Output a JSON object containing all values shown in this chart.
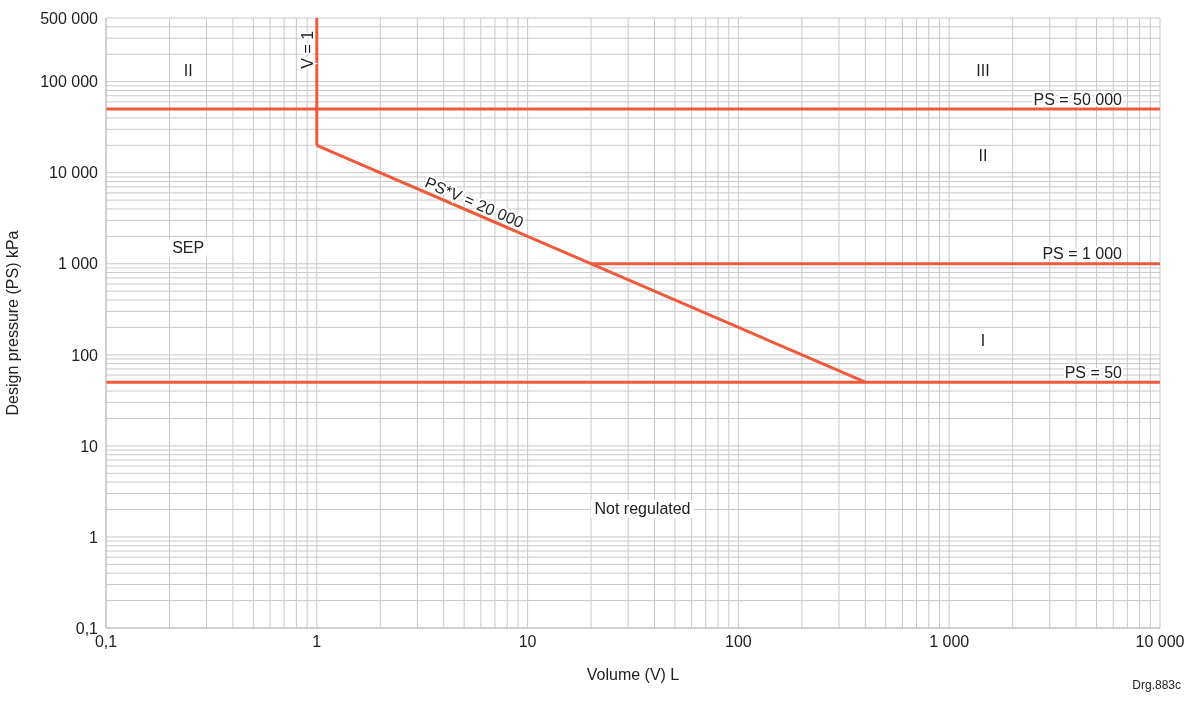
{
  "chart_data": {
    "type": "line",
    "xlabel": "Volume (V) L",
    "ylabel": "Design pressure (PS) kPa",
    "log": "xy",
    "grid": true,
    "xlim": [
      0.1,
      10000
    ],
    "ylim": [
      0.1,
      500000
    ],
    "xticks": [
      {
        "value": 0.1,
        "label": "0,1"
      },
      {
        "value": 0.2,
        "label": null
      },
      {
        "value": 0.3,
        "label": null
      },
      {
        "value": 0.4,
        "label": null
      },
      {
        "value": 0.5,
        "label": null
      },
      {
        "value": 0.6,
        "label": null
      },
      {
        "value": 0.7,
        "label": null
      },
      {
        "value": 0.8,
        "label": null
      },
      {
        "value": 0.9,
        "label": null
      },
      1,
      {
        "value": 2,
        "label": null
      },
      {
        "value": 3,
        "label": null
      },
      {
        "value": 4,
        "label": null
      },
      {
        "value": 5,
        "label": null
      },
      {
        "value": 6,
        "label": null
      },
      {
        "value": 7,
        "label": null
      },
      {
        "value": 8,
        "label": null
      },
      {
        "value": 9,
        "label": null
      },
      10,
      {
        "value": 20,
        "label": null
      },
      {
        "value": 30,
        "label": null
      },
      {
        "value": 40,
        "label": null
      },
      {
        "value": 50,
        "label": null
      },
      {
        "value": 60,
        "label": null
      },
      {
        "value": 70,
        "label": null
      },
      {
        "value": 80,
        "label": null
      },
      {
        "value": 90,
        "label": null
      },
      100,
      {
        "value": 200,
        "label": null
      },
      {
        "value": 300,
        "label": null
      },
      {
        "value": 400,
        "label": null
      },
      {
        "value": 500,
        "label": null
      },
      {
        "value": 600,
        "label": null
      },
      {
        "value": 700,
        "label": null
      },
      {
        "value": 800,
        "label": null
      },
      {
        "value": 900,
        "label": null
      },
      {
        "value": 1000,
        "label": "1 000"
      },
      {
        "value": 2000,
        "label": null
      },
      {
        "value": 3000,
        "label": null
      },
      {
        "value": 4000,
        "label": null
      },
      {
        "value": 5000,
        "label": null
      },
      {
        "value": 6000,
        "label": null
      },
      {
        "value": 7000,
        "label": null
      },
      {
        "value": 8000,
        "label": null
      },
      {
        "value": 9000,
        "label": null
      },
      {
        "value": 10000,
        "label": "10 000"
      }
    ],
    "yticks": [
      {
        "value": 0.1,
        "label": "0,1"
      },
      {
        "value": 0.2,
        "label": null
      },
      {
        "value": 0.3,
        "label": null
      },
      {
        "value": 0.4,
        "label": null
      },
      {
        "value": 0.5,
        "label": null
      },
      {
        "value": 0.6,
        "label": null
      },
      {
        "value": 0.7,
        "label": null
      },
      {
        "value": 0.8,
        "label": null
      },
      {
        "value": 0.9,
        "label": null
      },
      1,
      {
        "value": 2,
        "label": null
      },
      {
        "value": 3,
        "label": null
      },
      {
        "value": 4,
        "label": null
      },
      {
        "value": 5,
        "label": null
      },
      {
        "value": 6,
        "label": null
      },
      {
        "value": 7,
        "label": null
      },
      {
        "value": 8,
        "label": null
      },
      {
        "value": 9,
        "label": null
      },
      10,
      {
        "value": 20,
        "label": null
      },
      {
        "value": 30,
        "label": null
      },
      {
        "value": 40,
        "label": null
      },
      {
        "value": 50,
        "label": null
      },
      {
        "value": 60,
        "label": null
      },
      {
        "value": 70,
        "label": null
      },
      {
        "value": 80,
        "label": null
      },
      {
        "value": 90,
        "label": null
      },
      100,
      {
        "value": 200,
        "label": null
      },
      {
        "value": 300,
        "label": null
      },
      {
        "value": 400,
        "label": null
      },
      {
        "value": 500,
        "label": null
      },
      {
        "value": 600,
        "label": null
      },
      {
        "value": 700,
        "label": null
      },
      {
        "value": 800,
        "label": null
      },
      {
        "value": 900,
        "label": null
      },
      {
        "value": 1000,
        "label": "1 000"
      },
      {
        "value": 2000,
        "label": null
      },
      {
        "value": 3000,
        "label": null
      },
      {
        "value": 4000,
        "label": null
      },
      {
        "value": 5000,
        "label": null
      },
      {
        "value": 6000,
        "label": null
      },
      {
        "value": 7000,
        "label": null
      },
      {
        "value": 8000,
        "label": null
      },
      {
        "value": 9000,
        "label": null
      },
      {
        "value": 10000,
        "label": "10 000"
      },
      {
        "value": 20000,
        "label": null
      },
      {
        "value": 30000,
        "label": null
      },
      {
        "value": 40000,
        "label": null
      },
      {
        "value": 50000,
        "label": null
      },
      {
        "value": 60000,
        "label": null
      },
      {
        "value": 70000,
        "label": null
      },
      {
        "value": 80000,
        "label": null
      },
      {
        "value": 90000,
        "label": null
      },
      {
        "value": 100000,
        "label": "100 000"
      },
      {
        "value": 200000,
        "label": null
      },
      {
        "value": 300000,
        "label": null
      },
      {
        "value": 400000,
        "label": null
      },
      {
        "value": 500000,
        "label": "500 000"
      }
    ],
    "series": [
      {
        "name": "V = 1",
        "color": "#ee5a3c",
        "x": [
          1,
          1
        ],
        "values": [
          20000,
          500000
        ]
      },
      {
        "name": "PS*V = 20 000",
        "color": "#ee5a3c",
        "x": [
          1,
          400
        ],
        "values": [
          20000,
          50
        ]
      },
      {
        "name": "PS = 1 000",
        "color": "#ee5a3c",
        "x": [
          20,
          10000
        ],
        "values": [
          1000,
          1000
        ]
      }
    ],
    "ref_lines": [
      {
        "axis": "y",
        "value": 50000,
        "label": "PS = 50 000",
        "color": "#ee5a3c"
      },
      {
        "axis": "y",
        "value": 50,
        "label": "PS = 50",
        "color": "#ee5a3c"
      }
    ],
    "annotations": [
      "II",
      "III",
      "II",
      "SEP",
      "I",
      "Not regulated",
      "Drg.883c"
    ]
  }
}
